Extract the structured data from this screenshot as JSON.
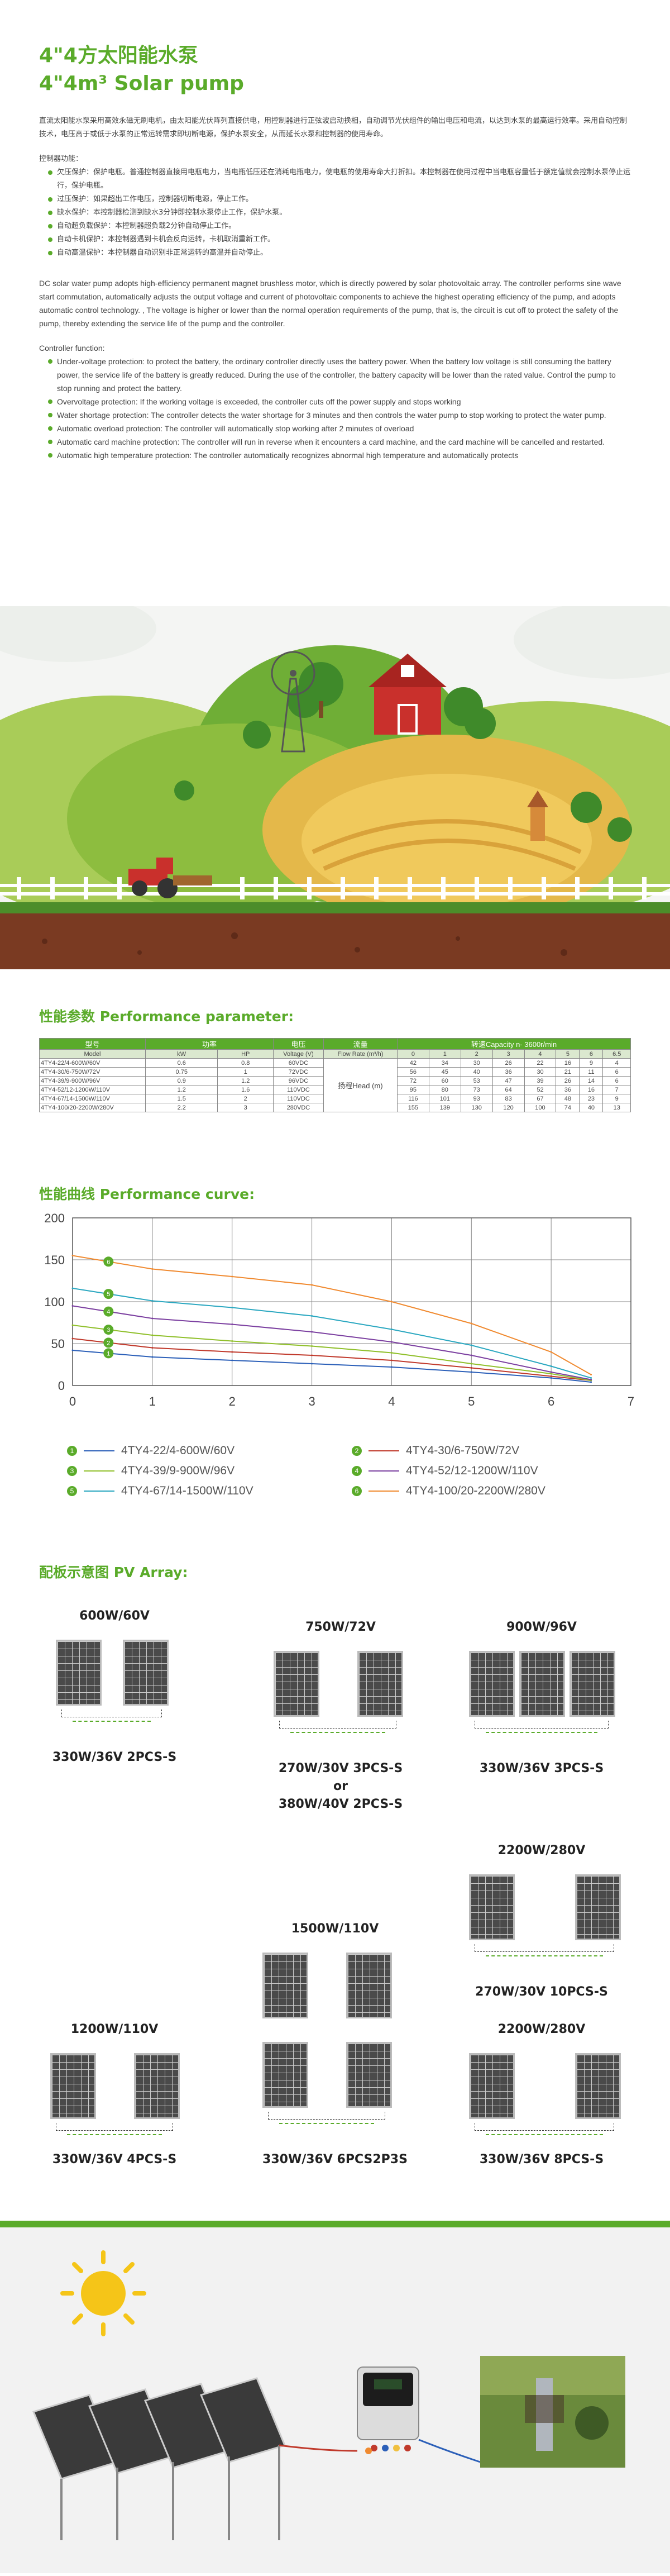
{
  "header": {
    "title_cn": "4\"4方太阳能水泵",
    "title_en": "4\"4m³ Solar pump"
  },
  "intro_cn": {
    "paragraph": "直流太阳能水泵采用高效永磁无刷电机，由太阳能光伏阵列直接供电，用控制器进行正弦波启动换相，自动调节光伏组件的输出电压和电流，以达到水泵的最高运行效率。采用自动控制技术，电压高于或低于水泵的正常运转需求即切断电源，保护水泵安全，从而延长水泵和控制器的使用寿命。",
    "heading": "控制器功能：",
    "items": [
      "欠压保护：保护电瓶。普通控制器直接用电瓶电力，当电瓶低压还在消耗电瓶电力，使电瓶的使用寿命大打折扣。本控制器在使用过程中当电瓶容量低于额定值就会控制水泵停止运行，保护电瓶。",
      "过压保护：如果超出工作电压，控制器切断电源，停止工作。",
      "缺水保护：本控制器检测到缺水3分钟即控制水泵停止工作，保护水泵。",
      "自动超负载保护：本控制器超负载2分钟自动停止工作。",
      "自动卡机保护：本控制器遇到卡机会反向运转，卡机取消重新工作。",
      "自动高温保护：本控制器自动识别非正常运转的高温并自动停止。"
    ]
  },
  "intro_en": {
    "paragraph": "DC solar water pump adopts high-efficiency permanent magnet brushless motor, which is directly powered by solar photovoltaic array. The controller performs sine wave start commutation, automatically adjusts the output voltage and current of photovoltaic components to achieve the highest operating efficiency of the pump, and adopts automatic control technology. , The voltage is higher or lower than the normal operation requirements of the pump, that is, the circuit is cut off to protect the safety of the pump, thereby extending the service life of the pump and the controller.",
    "heading": "Controller function:",
    "items": [
      "Under-voltage protection: to protect the battery, the ordinary controller directly uses the battery power. When the battery low voltage is still consuming the battery power, the service life of the battery is greatly reduced. During the use of the controller, the battery capacity will be lower than the rated value. Control the pump to stop running and protect the battery.",
      "Overvoltage protection: If the working voltage is exceeded, the controller cuts off the power supply and stops working",
      "Water shortage protection: The controller detects the water shortage for 3 minutes and then controls the water pump to stop working to protect the water pump.",
      "Automatic overload protection: The controller will automatically stop working after 2 minutes of overload",
      "Automatic card machine protection: The controller will run in reverse when it encounters a card machine, and the card machine will be cancelled and restarted.",
      "Automatic high temperature protection: The controller automatically recognizes abnormal high temperature and automatically protects"
    ]
  },
  "performance": {
    "title": "性能参数 Performance parameter:",
    "headers": {
      "model": "型号",
      "power": "功率",
      "voltage": "电压",
      "flow": "流量",
      "capacity": "转速Capacity n- 3600r/min"
    },
    "subheaders": {
      "model": "Model",
      "kw": "kW",
      "hp": "HP",
      "voltage": "Voltage (V)",
      "flow": "Flow Rate (m³/h)",
      "flows": [
        "0",
        "1",
        "2",
        "3",
        "4",
        "5",
        "6",
        "6.5"
      ]
    },
    "head_label": "扬程Head (m)",
    "rows": [
      {
        "model": "4TY4-22/4-600W/60V",
        "kw": "0.6",
        "hp": "0.8",
        "v": "60VDC",
        "h": [
          "42",
          "34",
          "30",
          "26",
          "22",
          "16",
          "9",
          "4"
        ]
      },
      {
        "model": "4TY4-30/6-750W/72V",
        "kw": "0.75",
        "hp": "1",
        "v": "72VDC",
        "h": [
          "56",
          "45",
          "40",
          "36",
          "30",
          "21",
          "11",
          "6"
        ]
      },
      {
        "model": "4TY4-39/9-900W/96V",
        "kw": "0.9",
        "hp": "1.2",
        "v": "96VDC",
        "h": [
          "72",
          "60",
          "53",
          "47",
          "39",
          "26",
          "14",
          "6"
        ]
      },
      {
        "model": "4TY4-52/12-1200W/110V",
        "kw": "1.2",
        "hp": "1.6",
        "v": "110VDC",
        "h": [
          "95",
          "80",
          "73",
          "64",
          "52",
          "36",
          "16",
          "7"
        ]
      },
      {
        "model": "4TY4-67/14-1500W/110V",
        "kw": "1.5",
        "hp": "2",
        "v": "110VDC",
        "h": [
          "116",
          "101",
          "93",
          "83",
          "67",
          "48",
          "23",
          "9"
        ]
      },
      {
        "model": "4TY4-100/20-2200W/280V",
        "kw": "2.2",
        "hp": "3",
        "v": "280VDC",
        "h": [
          "155",
          "139",
          "130",
          "120",
          "100",
          "74",
          "40",
          "13"
        ]
      }
    ]
  },
  "curve": {
    "title": "性能曲线 Performance curve:",
    "chart_data": {
      "type": "line",
      "x": [
        0,
        1,
        2,
        3,
        4,
        5,
        6,
        6.5
      ],
      "xlim": [
        0,
        7
      ],
      "ylim": [
        0,
        200
      ],
      "xticks": [
        "0",
        "1",
        "2",
        "3",
        "4",
        "5",
        "6",
        "7"
      ],
      "yticks": [
        "0",
        "50",
        "100",
        "150",
        "200"
      ],
      "series": [
        {
          "name": "4TY4-22/4-600W/60V",
          "num": "1",
          "color": "#2b5fb8",
          "values": [
            42,
            34,
            30,
            26,
            22,
            16,
            9,
            4
          ]
        },
        {
          "name": "4TY4-30/6-750W/72V",
          "num": "2",
          "color": "#c0392b",
          "values": [
            56,
            45,
            40,
            36,
            30,
            21,
            11,
            6
          ]
        },
        {
          "name": "4TY4-39/9-900W/96V",
          "num": "3",
          "color": "#8fbf2a",
          "values": [
            72,
            60,
            53,
            47,
            39,
            26,
            14,
            6
          ]
        },
        {
          "name": "4TY4-52/12-1200W/110V",
          "num": "4",
          "color": "#7b3fa0",
          "values": [
            95,
            80,
            73,
            64,
            52,
            36,
            16,
            7
          ]
        },
        {
          "name": "4TY4-67/14-1500W/110V",
          "num": "5",
          "color": "#2aa7c0",
          "values": [
            116,
            101,
            93,
            83,
            67,
            48,
            23,
            9
          ]
        },
        {
          "name": "4TY4-100/20-2200W/280V",
          "num": "6",
          "color": "#f08a30",
          "values": [
            155,
            139,
            130,
            120,
            100,
            74,
            40,
            13
          ]
        }
      ]
    }
  },
  "pv": {
    "title": "配板示意图 PV Array:",
    "groups": [
      {
        "power": "600W/60V",
        "config": [
          "330W/36V 2PCS-S"
        ]
      },
      {
        "power": "750W/72V",
        "config": [
          "270W/30V 3PCS-S",
          "or",
          "380W/40V 2PCS-S"
        ]
      },
      {
        "power": "900W/96V",
        "config": [
          "330W/36V 3PCS-S"
        ]
      },
      {
        "power": "2200W/280V",
        "config": [
          "270W/30V 10PCS-S"
        ]
      },
      {
        "power": "1500W/110V",
        "config": [
          "330W/36V 6PCS2P3S"
        ]
      },
      {
        "power": "1200W/110V",
        "config": [
          "330W/36V 4PCS-S"
        ]
      },
      {
        "power": "2200W/280V",
        "config": [
          "330W/36V 8PCS-S"
        ]
      }
    ]
  }
}
